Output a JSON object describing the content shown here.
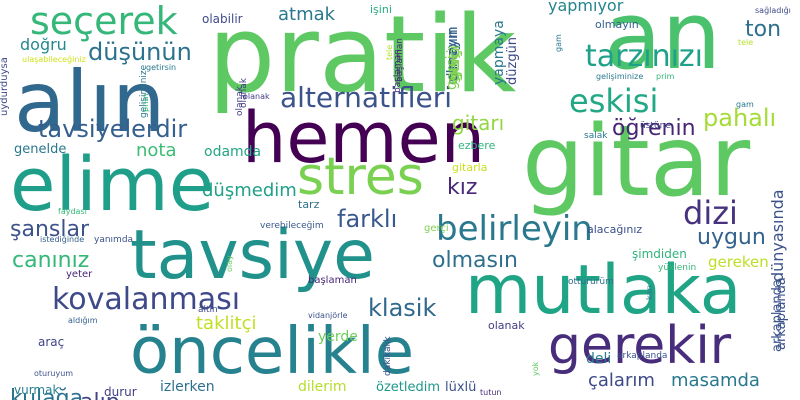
{
  "words": [
    {
      "text": "pratik",
      "color": "#5ec962"
    },
    {
      "text": "an",
      "color": "#4ac16d"
    },
    {
      "text": "gitar",
      "color": "#5ec962"
    },
    {
      "text": "alın",
      "color": "#31688e"
    },
    {
      "text": "hemen",
      "color": "#440154"
    },
    {
      "text": "elime",
      "color": "#1f9e89"
    },
    {
      "text": "tavsiye",
      "color": "#21918c"
    },
    {
      "text": "mutlaka",
      "color": "#20a486"
    },
    {
      "text": "öncelikle",
      "color": "#26828e"
    },
    {
      "text": "gerekir",
      "color": "#472d7b"
    },
    {
      "text": "stres",
      "color": "#7ad151"
    },
    {
      "text": "seçerek",
      "color": "#35b779"
    },
    {
      "text": "eskisi",
      "color": "#22a884"
    },
    {
      "text": "tarzınızı",
      "color": "#1fa088"
    },
    {
      "text": "alternatifleri",
      "color": "#3b528b"
    },
    {
      "text": "düşünün",
      "color": "#2c728e"
    },
    {
      "text": "belirleyin",
      "color": "#2a788e"
    },
    {
      "text": "kovalanması",
      "color": "#3e4989"
    },
    {
      "text": "dizi",
      "color": "#46327e"
    },
    {
      "text": "tavsiyelerdir",
      "color": "#355f8d"
    },
    {
      "text": "farklı",
      "color": "#38598c"
    },
    {
      "text": "klasik",
      "color": "#31688e"
    },
    {
      "text": "uygun",
      "color": "#33638d"
    },
    {
      "text": "canınız",
      "color": "#35b779"
    },
    {
      "text": "şanslar",
      "color": "#3b528b"
    },
    {
      "text": "olmasın",
      "color": "#2e6f8e"
    },
    {
      "text": "pahalı",
      "color": "#a5db36"
    },
    {
      "text": "ton",
      "color": "#2d708e"
    },
    {
      "text": "öğrenin",
      "color": "#482475"
    },
    {
      "text": "gitarı",
      "color": "#90d743"
    },
    {
      "text": "doğru",
      "color": "#23898e"
    },
    {
      "text": "atmak",
      "color": "#2a788e"
    },
    {
      "text": "kız",
      "color": "#482878"
    },
    {
      "text": "nota",
      "color": "#3dbc74"
    },
    {
      "text": "düşmedim",
      "color": "#1fa088"
    },
    {
      "text": "taklitçi",
      "color": "#c2df23"
    },
    {
      "text": "alıp",
      "color": "#414487"
    },
    {
      "text": "kulağa",
      "color": "#2c728e"
    },
    {
      "text": "masamda",
      "color": "#2a788e"
    },
    {
      "text": "çalarım",
      "color": "#3e4a89"
    },
    {
      "text": "yapmıyor",
      "color": "#25848e"
    },
    {
      "text": "gereken",
      "color": "#bddf26"
    },
    {
      "text": "yerde",
      "color": "#6ccd5a"
    },
    {
      "text": "deli",
      "color": "#2a788e"
    },
    {
      "text": "odamda",
      "color": "#21a685"
    },
    {
      "text": "genelde",
      "color": "#2a778e"
    },
    {
      "text": "izlerken",
      "color": "#2d708e"
    },
    {
      "text": "dilerim",
      "color": "#b5de2b"
    },
    {
      "text": "özetledim",
      "color": "#1f978b"
    },
    {
      "text": "lüxlü",
      "color": "#3b528b"
    },
    {
      "text": "vurmak",
      "color": "#277f8e"
    },
    {
      "text": "durur",
      "color": "#433e85"
    },
    {
      "text": "araç",
      "color": "#414487"
    },
    {
      "text": "olabilir",
      "color": "#3e4a89"
    },
    {
      "text": "işini",
      "color": "#25ab82"
    },
    {
      "text": "gitarla",
      "color": "#c8e020"
    },
    {
      "text": "ezbere",
      "color": "#2fb47c"
    },
    {
      "text": "tarz",
      "color": "#2e6e8e"
    },
    {
      "text": "alacağınız",
      "color": "#3c4f8a"
    },
    {
      "text": "şimdiden",
      "color": "#2fb47c"
    },
    {
      "text": "dünyasında",
      "color": "#3b528b"
    },
    {
      "text": "yapmaya",
      "color": "#2a788e"
    },
    {
      "text": "olmayın",
      "color": "#34618d"
    },
    {
      "text": "düzgün",
      "color": "#3e4989"
    },
    {
      "text": "gerçi",
      "color": "#7fd34e"
    },
    {
      "text": "başlaman",
      "color": "#482878"
    },
    {
      "text": "olanak",
      "color": "#433e85"
    },
    {
      "text": "verebileceğim",
      "color": "#38598c"
    },
    {
      "text": "çalamıyorum",
      "color": "#46327e"
    },
    {
      "text": "yüklenin",
      "color": "#35b779"
    },
    {
      "text": "ottürürüm",
      "color": "#2e6e8e"
    },
    {
      "text": "arkaplanda",
      "color": "#3b528b"
    },
    {
      "text": "salak",
      "color": "#2a788e"
    },
    {
      "text": "üstüne",
      "color": "#3e4989"
    },
    {
      "text": "yanımda",
      "color": "#3b528b"
    },
    {
      "text": "yeter",
      "color": "#482878"
    },
    {
      "text": "altın",
      "color": "#3e4a89"
    },
    {
      "text": "vidanjörle",
      "color": "#3b528b"
    },
    {
      "text": "aldığım",
      "color": "#35608d"
    },
    {
      "text": "oturuyum",
      "color": "#3b528b"
    },
    {
      "text": "faydası",
      "color": "#35b779"
    },
    {
      "text": "istediğinde",
      "color": "#35608d"
    },
    {
      "text": "tutun",
      "color": "#472d7b"
    },
    {
      "text": "elinize",
      "color": "#3dbc74"
    },
    {
      "text": "getirsin",
      "color": "#2a788e"
    },
    {
      "text": "ulaşabileceğiniz",
      "color": "#d2e21b"
    },
    {
      "text": "dakikalık",
      "color": "#3b528b"
    },
    {
      "text": "beklemeyin",
      "color": "#3b528b"
    },
    {
      "text": "uydurduysa",
      "color": "#3e4989"
    },
    {
      "text": "gelişiminize",
      "color": "#2a788e"
    },
    {
      "text": "prim",
      "color": "#35b779"
    },
    {
      "text": "tele",
      "color": "#b5de2b"
    },
    {
      "text": "gam",
      "color": "#2a788e"
    },
    {
      "text": "sağladığı",
      "color": "#3e4989"
    },
    {
      "text": "gitmeyin",
      "color": "#35608d"
    },
    {
      "text": "senedir",
      "color": "#3e4989"
    },
    {
      "text": "diyenlerin",
      "color": "#433e85"
    },
    {
      "text": "aşırı",
      "color": "#2a788e"
    },
    {
      "text": "olay",
      "color": "#6ccd5a"
    },
    {
      "text": "yok",
      "color": "#5ec962"
    },
    {
      "text": "karı",
      "color": "#2a788e"
    }
  ]
}
